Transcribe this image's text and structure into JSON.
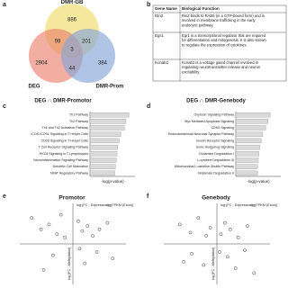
{
  "panels": [
    "a",
    "b",
    "c",
    "d",
    "e",
    "f"
  ],
  "venn": {
    "sets": [
      "DMR-GB",
      "DEG",
      "DMR-Prom"
    ],
    "counts": {
      "gb_only": "886",
      "deg_only": "2904",
      "prom_only": "384",
      "gb_deg": "99",
      "gb_prom": "201",
      "deg_prom": "44",
      "all": "3"
    }
  },
  "table": {
    "header": [
      "Gene Name",
      "Biological Function"
    ],
    "rows": [
      [
        "Rin2",
        "Rin2 binds to RAB5 (in a GTP-bound form) and is involved in membrane trafficking in the early endocytic pathway."
      ],
      [
        "Egr1",
        "Egr1 is a transcriptional regulator that are required for differentiation and mitogenesis. It is also known to regulate the expression of cytokines."
      ],
      [
        "Kcnab1",
        "Kcnab1 is a voltage gated channel involved in regulating neurotransmitter release and neuron excitability."
      ]
    ]
  },
  "chart_data": [
    {
      "type": "barh",
      "title": "DEG ∩ DMR-Promotor",
      "xlabel": "-log(p-value)",
      "color": "#d9d9d9",
      "categories": [
        "Th1 Pathway",
        "Th2 Pathway",
        "Th1 and Th2 Activation Pathway",
        "iCOS-iCOSL Signaling in T Helper Cells",
        "CD28 Signaling in T Helper Cells",
        "T Cell Receptor Signaling Pathway",
        "PKCθ Signaling in T Lymphocytes",
        "Neuroinflammation Signaling Pathway",
        "Dendritic Cell Maturation",
        "NFAT Regulatory Pathway"
      ],
      "values": [
        5.2,
        4.8,
        4.6,
        4.1,
        3.9,
        3.7,
        3.6,
        3.5,
        3.4,
        3.3
      ],
      "xlim": [
        0,
        6
      ]
    },
    {
      "type": "barh",
      "title": "DEG ∩ DMR-Genebody",
      "xlabel": "-log(p-value)",
      "color": "#d9d9d9",
      "categories": [
        "Oxytocin Signaling Pathway",
        "Myc Mediated Apoptosis Signaling",
        "CDK5 Signaling",
        "Endocannabinoid Neuronal Synapse Pathway",
        "Insulin Receptor Signaling",
        "Sonic Hedgehog Signaling",
        "Glutamine Degradation I",
        "L-cysteine Degradation III",
        "Mitochondrial L-carnitine Shuttle Pathway",
        "Glutamate Degradation II"
      ],
      "values": [
        4.6,
        4.3,
        4.0,
        3.6,
        3.4,
        3.2,
        3.1,
        3.0,
        2.9,
        2.9
      ],
      "xlim": [
        0,
        6
      ]
    },
    {
      "type": "scatter",
      "title": "Promotor",
      "xlabel": "log (FC - Expression)",
      "ylabel": "log (FC - Methylation)",
      "legend_title": "log(FPKM (Exon))",
      "color": "#333333",
      "x": [
        -3.1,
        -2.4,
        -1.8,
        -1.2,
        -0.9,
        -0.6,
        0.4,
        0.7,
        1.1,
        1.5,
        2.0,
        2.6,
        -1.5,
        0.9,
        1.8,
        -2.2,
        0.5,
        3.0
      ],
      "y": [
        1.6,
        0.9,
        1.2,
        0.6,
        1.8,
        0.4,
        1.4,
        0.8,
        1.1,
        0.5,
        0.9,
        1.3,
        -0.7,
        -1.2,
        -0.5,
        -1.6,
        -0.3,
        -0.9
      ],
      "xlim": [
        -4,
        4
      ],
      "ylim": [
        -2.5,
        2.5
      ]
    },
    {
      "type": "scatter",
      "title": "Genebody",
      "xlabel": "log (FC - Expression)",
      "ylabel": "log (FC - Methylation)",
      "legend_title": "log(FPKM (Exon))",
      "color": "#333333",
      "x": [
        -2.8,
        -2.0,
        -1.4,
        -0.8,
        -0.5,
        0.3,
        0.6,
        1.0,
        1.6,
        2.3,
        -1.9,
        -1.0,
        0.8,
        1.4,
        2.1,
        -2.5,
        0.2,
        2.8
      ],
      "y": [
        1.2,
        0.7,
        1.6,
        0.5,
        1.0,
        0.6,
        1.3,
        0.9,
        0.4,
        1.1,
        -0.6,
        -1.3,
        -0.8,
        -1.5,
        -0.4,
        -1.1,
        -0.5,
        -1.8
      ],
      "xlim": [
        -4,
        4
      ],
      "ylim": [
        -2.5,
        2.5
      ]
    }
  ]
}
